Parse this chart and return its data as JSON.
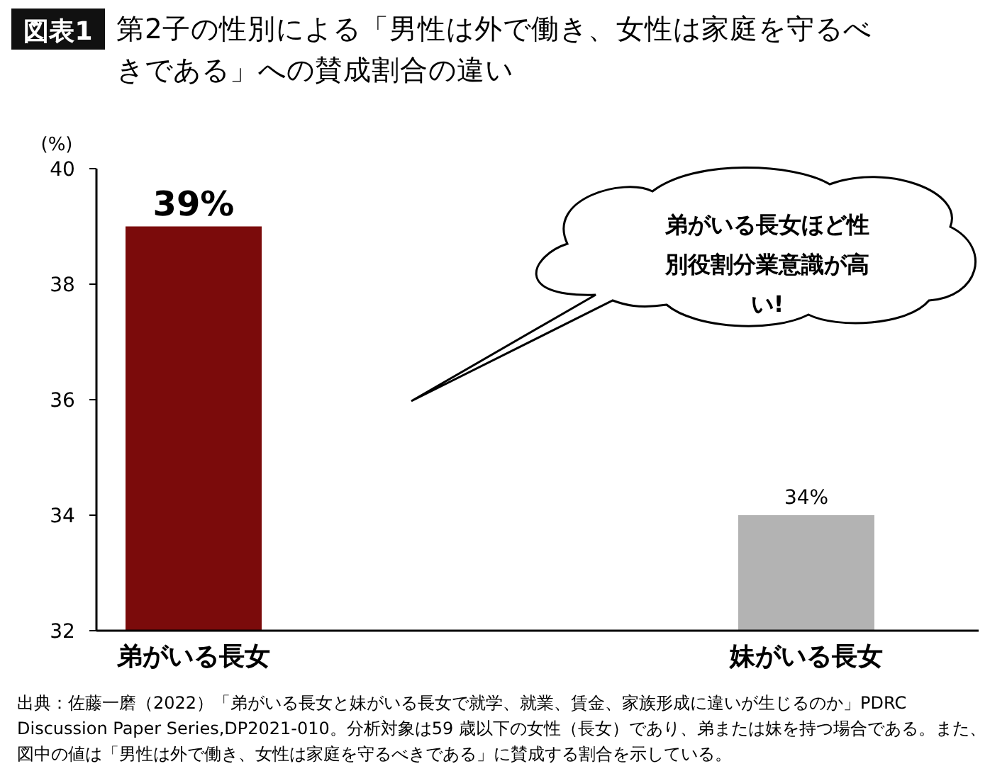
{
  "chart_data": {
    "type": "bar",
    "title": "第2子の性別による「男性は外で働き、女性は家庭を守るべきである」への賛成割合の違い",
    "ylabel": "(%)",
    "categories": [
      "弟がいる長女",
      "妹がいる長女"
    ],
    "values": [
      39,
      34
    ],
    "colors": [
      "#7b0b0b",
      "#b3b3b3"
    ],
    "value_labels": [
      "39%",
      "34%"
    ],
    "ylim": [
      32,
      40
    ],
    "yticks": [
      32,
      34,
      36,
      38,
      40
    ],
    "grid": false,
    "annotations": [
      "図表1",
      "弟がいる長女ほど性別役割分業意識が高い!",
      "出典：佐藤一磨（2022）「弟がいる長女と妹がいる長女で就学、就業、賃金、家族形成に違いが生じるのか」PDRC Discussion Paper Series,DP2021-010。分析対象は59 歳以下の女性（長女）であり、弟または妹を持つ場合である。また、図中の値は「男性は外で働き、女性は家庭を守るべきである」に賛成する割合を示している。"
    ]
  }
}
